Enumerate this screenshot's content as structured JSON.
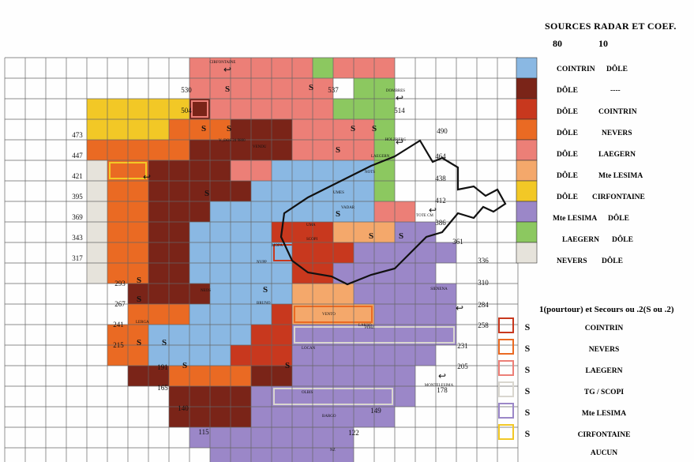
{
  "legend": {
    "title": "SOURCES RADAR ET COEF.",
    "coef_primary": "80",
    "coef_secondary": "10",
    "pairs": [
      {
        "primary": "COINTRIN",
        "secondary": "DÔLE",
        "color": "#8ab8e3"
      },
      {
        "primary": "DÔLE",
        "secondary": "----",
        "color": "#7a2418"
      },
      {
        "primary": "DÔLE",
        "secondary": "COINTRIN",
        "color": "#c8381e"
      },
      {
        "primary": "DÔLE",
        "secondary": "NEVERS",
        "color": "#ea6a23"
      },
      {
        "primary": "DÔLE",
        "secondary": "LAEGERN",
        "color": "#ec7f77"
      },
      {
        "primary": "DÔLE",
        "secondary": "Mte LESIMA",
        "color": "#f4a86b"
      },
      {
        "primary": "DÔLE",
        "secondary": "CIRFONTAINE",
        "color": "#f2c826"
      },
      {
        "primary": "Mte LESIMA",
        "secondary": "DÔLE",
        "color": "#9b87c8"
      },
      {
        "primary": "LAEGERN",
        "secondary": "DÔLE",
        "color": "#8cc860"
      },
      {
        "primary": "NEVERS",
        "secondary": "DÔLE",
        "color": "#e6e3db"
      }
    ],
    "backup_title": "1(pourtour) et Secours ou .2(S ou .2)",
    "backups": [
      {
        "label": "COINTRIN",
        "color": "#c8381e",
        "icon": "radar-s-icon"
      },
      {
        "label": "NEVERS",
        "color": "#ea6a23",
        "icon": "radar-s-icon"
      },
      {
        "label": "LAEGERN",
        "color": "#ec7f77",
        "icon": "radar-s-icon"
      },
      {
        "label": "TG / SCOPI",
        "color": "#d9d6cf",
        "icon": "radar-s-icon"
      },
      {
        "label": "Mte LESIMA",
        "color": "#9b87c8",
        "icon": "radar-s-icon"
      },
      {
        "label": "CIRFONTAINE",
        "color": "#f2c826",
        "icon": "radar-s-icon"
      },
      {
        "label": "AUCUN",
        "color": "",
        "icon": ""
      }
    ]
  },
  "grid": {
    "row_labels_left": [
      "473",
      "447",
      "421",
      "395",
      "369",
      "343",
      "317"
    ],
    "row_labels_center": [
      "530",
      "504",
      "293",
      "267",
      "241",
      "215",
      "191",
      "165",
      "140",
      "115"
    ],
    "row_labels_right": [
      "537",
      "514",
      "490",
      "464",
      "438",
      "412",
      "386",
      "361",
      "336",
      "310",
      "284",
      "258",
      "231",
      "205",
      "178",
      "149",
      "122"
    ]
  },
  "sites": [
    "CIRFONTAINE",
    "DOMBRES",
    "HOLZBERG",
    "TOTE CM",
    "SIENENA",
    "MONTELESIMA"
  ],
  "sector_labels": [
    "V_DOS 24 9800",
    "VENDU",
    "LAEGERN",
    "NOTS",
    "UMES",
    "VADAR",
    "UMA",
    "MOPA",
    "NVPP",
    "SCOPI",
    "BRUNO",
    "LAKSO",
    "VENTO",
    "LOCAN",
    "PIMZ",
    "LERGA",
    "NEOS",
    "OLBIS",
    "BARGO",
    "NZ"
  ]
}
